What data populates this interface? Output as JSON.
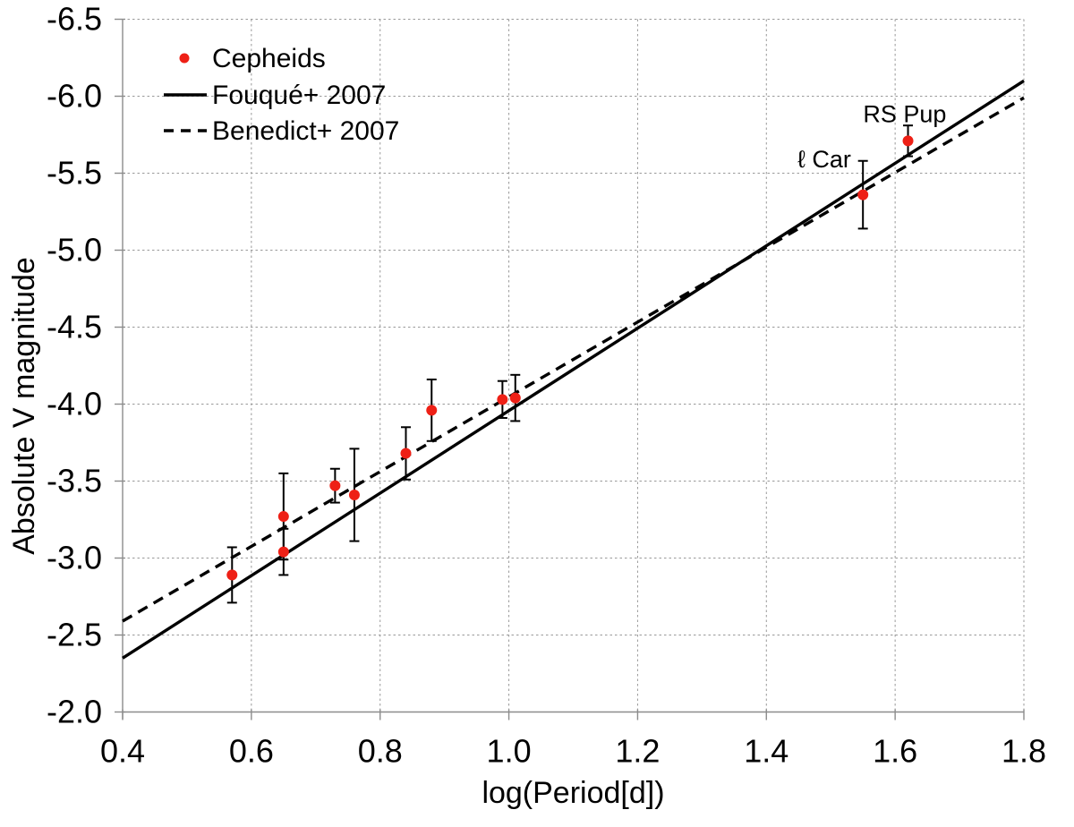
{
  "chart_data": {
    "type": "scatter",
    "title": "",
    "xlabel": "log(Period[d])",
    "ylabel": "Absolute V magnitude",
    "xlim": [
      0.4,
      1.8
    ],
    "ylim": [
      -2.0,
      -6.5
    ],
    "y_axis_direction": "inverted (brighter magnitudes up)",
    "xticks": [
      "0.4",
      "0.6",
      "0.8",
      "1.0",
      "1.2",
      "1.4",
      "1.6",
      "1.8"
    ],
    "yticks": [
      "-6.5",
      "-6.0",
      "-5.5",
      "-5.0",
      "-4.5",
      "-4.0",
      "-3.5",
      "-3.0",
      "-2.5",
      "-2.0"
    ],
    "grid": true,
    "colors": {
      "point": "#ee2016",
      "line": "#000000",
      "grid": "#999999",
      "axis": "#8c8c8c",
      "text": "#000000",
      "background": "#ffffff"
    },
    "legend": {
      "position": "top-left",
      "entries": [
        {
          "label": "Cepheids",
          "marker": "dot",
          "color": "#ee2016"
        },
        {
          "label": "Fouqué+ 2007",
          "marker": "solid-line",
          "color": "#000000"
        },
        {
          "label": "Benedict+ 2007",
          "marker": "dashed-line",
          "color": "#000000"
        }
      ]
    },
    "series": [
      {
        "name": "Cepheids",
        "type": "scatter",
        "points": [
          {
            "x": 0.57,
            "y": -2.89,
            "err": 0.18
          },
          {
            "x": 0.65,
            "y": -3.27,
            "err": 0.28
          },
          {
            "x": 0.65,
            "y": -3.04,
            "err": 0.15
          },
          {
            "x": 0.73,
            "y": -3.47,
            "err": 0.11
          },
          {
            "x": 0.76,
            "y": -3.41,
            "err": 0.3
          },
          {
            "x": 0.84,
            "y": -3.68,
            "err": 0.17
          },
          {
            "x": 0.88,
            "y": -3.96,
            "err": 0.2
          },
          {
            "x": 0.99,
            "y": -4.03,
            "err": 0.12
          },
          {
            "x": 1.01,
            "y": -4.04,
            "err": 0.15
          },
          {
            "x": 1.55,
            "y": -5.36,
            "err": 0.22,
            "star": "ℓ Car"
          },
          {
            "x": 1.62,
            "y": -5.71,
            "err": 0.1,
            "star": "RS Pup"
          }
        ]
      },
      {
        "name": "Fouqué+ 2007",
        "type": "line",
        "style": "solid",
        "x": [
          0.4,
          1.8
        ],
        "y": [
          -2.35,
          -6.1
        ]
      },
      {
        "name": "Benedict+ 2007",
        "type": "line",
        "style": "dashed",
        "x": [
          0.4,
          1.8
        ],
        "y": [
          -2.59,
          -5.99
        ]
      }
    ],
    "annotations": [
      {
        "text": "ℓ Car",
        "x": 1.49,
        "y": -5.59
      },
      {
        "text": "RS Pup",
        "x": 1.615,
        "y": -5.885
      }
    ]
  }
}
